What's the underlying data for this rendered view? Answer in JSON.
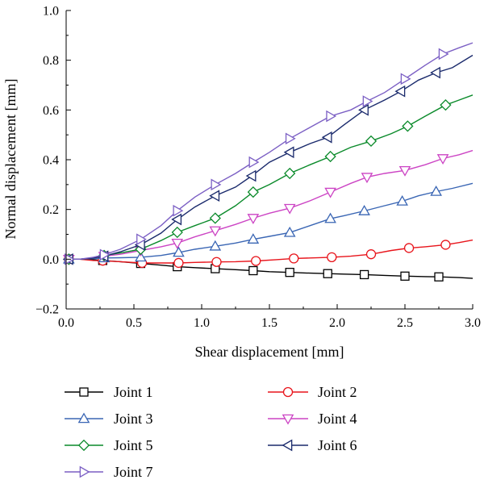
{
  "chart_data": {
    "type": "line",
    "xlabel": "Shear displacement [mm]",
    "ylabel": "Normal displacement [mm]",
    "xlim": [
      0,
      3.0
    ],
    "ylim": [
      -0.2,
      1.0
    ],
    "x_ticks": [
      "0.0",
      "0.5",
      "1.0",
      "1.5",
      "2.0",
      "2.5",
      "3.0"
    ],
    "y_ticks": [
      "−0.2",
      "0.0",
      "0.2",
      "0.4",
      "0.6",
      "0.8",
      "1.0"
    ],
    "x_tick_values": [
      0,
      0.5,
      1.0,
      1.5,
      2.0,
      2.5,
      3.0
    ],
    "y_tick_values": [
      -0.2,
      0,
      0.2,
      0.4,
      0.6,
      0.8,
      1.0
    ],
    "grid": false,
    "legend_position": "bottom",
    "series": [
      {
        "name": "Joint 1",
        "color": "#000000",
        "marker": "square",
        "points": [
          [
            0,
            0
          ],
          [
            0.02,
            0
          ],
          [
            0.05,
            0
          ],
          [
            0.1,
            0
          ],
          [
            0.2,
            -0.002
          ],
          [
            0.27,
            -0.005
          ],
          [
            0.4,
            -0.01
          ],
          [
            0.55,
            -0.017
          ],
          [
            0.7,
            -0.024
          ],
          [
            0.82,
            -0.03
          ],
          [
            0.95,
            -0.034
          ],
          [
            1.1,
            -0.038
          ],
          [
            1.25,
            -0.042
          ],
          [
            1.38,
            -0.046
          ],
          [
            1.5,
            -0.05
          ],
          [
            1.65,
            -0.053
          ],
          [
            1.8,
            -0.056
          ],
          [
            1.93,
            -0.058
          ],
          [
            2.05,
            -0.06
          ],
          [
            2.2,
            -0.062
          ],
          [
            2.35,
            -0.065
          ],
          [
            2.5,
            -0.068
          ],
          [
            2.65,
            -0.07
          ],
          [
            2.75,
            -0.071
          ],
          [
            2.9,
            -0.074
          ],
          [
            3.0,
            -0.077
          ]
        ],
        "markers": [
          [
            0.02,
            0
          ],
          [
            0.27,
            -0.005
          ],
          [
            0.55,
            -0.017
          ],
          [
            0.82,
            -0.03
          ],
          [
            1.1,
            -0.038
          ],
          [
            1.38,
            -0.046
          ],
          [
            1.65,
            -0.053
          ],
          [
            1.93,
            -0.058
          ],
          [
            2.2,
            -0.062
          ],
          [
            2.5,
            -0.068
          ],
          [
            2.75,
            -0.071
          ]
        ]
      },
      {
        "name": "Joint 2",
        "color": "#e8141b",
        "marker": "circle",
        "points": [
          [
            0,
            0
          ],
          [
            0.02,
            0
          ],
          [
            0.1,
            0
          ],
          [
            0.2,
            -0.005
          ],
          [
            0.27,
            -0.006
          ],
          [
            0.4,
            -0.01
          ],
          [
            0.56,
            -0.015
          ],
          [
            0.7,
            -0.015
          ],
          [
            0.83,
            -0.015
          ],
          [
            0.95,
            -0.013
          ],
          [
            1.11,
            -0.011
          ],
          [
            1.25,
            -0.01
          ],
          [
            1.4,
            -0.007
          ],
          [
            1.55,
            -0.002
          ],
          [
            1.68,
            0.003
          ],
          [
            1.8,
            0.005
          ],
          [
            1.96,
            0.008
          ],
          [
            2.1,
            0.012
          ],
          [
            2.25,
            0.02
          ],
          [
            2.4,
            0.035
          ],
          [
            2.53,
            0.045
          ],
          [
            2.65,
            0.05
          ],
          [
            2.8,
            0.058
          ],
          [
            2.9,
            0.067
          ],
          [
            3.0,
            0.077
          ]
        ],
        "markers": [
          [
            0.02,
            0
          ],
          [
            0.27,
            -0.006
          ],
          [
            0.56,
            -0.015
          ],
          [
            0.83,
            -0.015
          ],
          [
            1.11,
            -0.011
          ],
          [
            1.4,
            -0.007
          ],
          [
            1.68,
            0.003
          ],
          [
            1.96,
            0.008
          ],
          [
            2.25,
            0.02
          ],
          [
            2.53,
            0.045
          ],
          [
            2.8,
            0.058
          ]
        ]
      },
      {
        "name": "Joint 3",
        "color": "#3a66b4",
        "marker": "triangle-up",
        "points": [
          [
            0,
            0
          ],
          [
            0.02,
            0
          ],
          [
            0.1,
            0
          ],
          [
            0.2,
            0.002
          ],
          [
            0.28,
            0.005
          ],
          [
            0.4,
            0.006
          ],
          [
            0.55,
            0.008
          ],
          [
            0.7,
            0.015
          ],
          [
            0.83,
            0.027
          ],
          [
            0.95,
            0.04
          ],
          [
            1.1,
            0.052
          ],
          [
            1.25,
            0.065
          ],
          [
            1.38,
            0.08
          ],
          [
            1.5,
            0.092
          ],
          [
            1.65,
            0.107
          ],
          [
            1.8,
            0.135
          ],
          [
            1.95,
            0.163
          ],
          [
            2.05,
            0.175
          ],
          [
            2.2,
            0.194
          ],
          [
            2.35,
            0.215
          ],
          [
            2.48,
            0.233
          ],
          [
            2.6,
            0.255
          ],
          [
            2.73,
            0.272
          ],
          [
            2.85,
            0.285
          ],
          [
            3.0,
            0.305
          ]
        ],
        "markers": [
          [
            0.02,
            0
          ],
          [
            0.28,
            0.005
          ],
          [
            0.55,
            0.008
          ],
          [
            0.83,
            0.027
          ],
          [
            1.1,
            0.052
          ],
          [
            1.38,
            0.08
          ],
          [
            1.65,
            0.107
          ],
          [
            1.95,
            0.163
          ],
          [
            2.2,
            0.194
          ],
          [
            2.48,
            0.233
          ],
          [
            2.73,
            0.272
          ]
        ]
      },
      {
        "name": "Joint 4",
        "color": "#cc44c4",
        "marker": "triangle-down",
        "points": [
          [
            0,
            0
          ],
          [
            0.02,
            0
          ],
          [
            0.1,
            0
          ],
          [
            0.2,
            0.005
          ],
          [
            0.28,
            0.012
          ],
          [
            0.4,
            0.02
          ],
          [
            0.55,
            0.035
          ],
          [
            0.7,
            0.05
          ],
          [
            0.82,
            0.065
          ],
          [
            0.95,
            0.09
          ],
          [
            1.1,
            0.115
          ],
          [
            1.25,
            0.14
          ],
          [
            1.38,
            0.165
          ],
          [
            1.5,
            0.185
          ],
          [
            1.65,
            0.205
          ],
          [
            1.8,
            0.235
          ],
          [
            1.95,
            0.27
          ],
          [
            2.1,
            0.305
          ],
          [
            2.22,
            0.33
          ],
          [
            2.35,
            0.345
          ],
          [
            2.5,
            0.357
          ],
          [
            2.65,
            0.38
          ],
          [
            2.78,
            0.405
          ],
          [
            2.9,
            0.42
          ],
          [
            3.0,
            0.437
          ]
        ],
        "markers": [
          [
            0.02,
            0
          ],
          [
            0.28,
            0.012
          ],
          [
            0.55,
            0.035
          ],
          [
            0.82,
            0.065
          ],
          [
            1.1,
            0.115
          ],
          [
            1.38,
            0.165
          ],
          [
            1.65,
            0.205
          ],
          [
            1.95,
            0.27
          ],
          [
            2.22,
            0.33
          ],
          [
            2.5,
            0.357
          ],
          [
            2.78,
            0.405
          ]
        ]
      },
      {
        "name": "Joint 5",
        "color": "#0a8a2a",
        "marker": "diamond",
        "points": [
          [
            0,
            0
          ],
          [
            0.02,
            0
          ],
          [
            0.1,
            0
          ],
          [
            0.2,
            0.005
          ],
          [
            0.28,
            0.015
          ],
          [
            0.4,
            0.025
          ],
          [
            0.55,
            0.04
          ],
          [
            0.7,
            0.075
          ],
          [
            0.82,
            0.108
          ],
          [
            0.95,
            0.135
          ],
          [
            1.1,
            0.165
          ],
          [
            1.25,
            0.215
          ],
          [
            1.38,
            0.27
          ],
          [
            1.5,
            0.3
          ],
          [
            1.65,
            0.345
          ],
          [
            1.8,
            0.38
          ],
          [
            1.95,
            0.413
          ],
          [
            2.1,
            0.45
          ],
          [
            2.25,
            0.475
          ],
          [
            2.4,
            0.505
          ],
          [
            2.52,
            0.535
          ],
          [
            2.65,
            0.575
          ],
          [
            2.8,
            0.62
          ],
          [
            2.9,
            0.64
          ],
          [
            3.0,
            0.66
          ]
        ],
        "markers": [
          [
            0.02,
            0
          ],
          [
            0.28,
            0.015
          ],
          [
            0.55,
            0.04
          ],
          [
            0.82,
            0.108
          ],
          [
            1.1,
            0.165
          ],
          [
            1.38,
            0.27
          ],
          [
            1.65,
            0.345
          ],
          [
            1.95,
            0.413
          ],
          [
            2.25,
            0.475
          ],
          [
            2.52,
            0.535
          ],
          [
            2.8,
            0.62
          ]
        ]
      },
      {
        "name": "Joint 6",
        "color": "#1a2a6c",
        "marker": "triangle-left",
        "points": [
          [
            0,
            0
          ],
          [
            0.02,
            0
          ],
          [
            0.1,
            0
          ],
          [
            0.2,
            0.005
          ],
          [
            0.28,
            0.012
          ],
          [
            0.4,
            0.03
          ],
          [
            0.55,
            0.058
          ],
          [
            0.7,
            0.105
          ],
          [
            0.82,
            0.16
          ],
          [
            0.95,
            0.21
          ],
          [
            1.1,
            0.255
          ],
          [
            1.25,
            0.29
          ],
          [
            1.37,
            0.335
          ],
          [
            1.5,
            0.39
          ],
          [
            1.65,
            0.43
          ],
          [
            1.8,
            0.465
          ],
          [
            1.93,
            0.49
          ],
          [
            2.05,
            0.54
          ],
          [
            2.2,
            0.6
          ],
          [
            2.35,
            0.64
          ],
          [
            2.47,
            0.675
          ],
          [
            2.6,
            0.72
          ],
          [
            2.73,
            0.75
          ],
          [
            2.85,
            0.77
          ],
          [
            3.0,
            0.82
          ]
        ],
        "markers": [
          [
            0.02,
            0
          ],
          [
            0.28,
            0.012
          ],
          [
            0.55,
            0.058
          ],
          [
            0.82,
            0.16
          ],
          [
            1.1,
            0.255
          ],
          [
            1.37,
            0.335
          ],
          [
            1.65,
            0.43
          ],
          [
            1.93,
            0.49
          ],
          [
            2.2,
            0.6
          ],
          [
            2.47,
            0.675
          ],
          [
            2.73,
            0.75
          ]
        ]
      },
      {
        "name": "Joint 7",
        "color": "#7b5fc4",
        "marker": "triangle-right",
        "points": [
          [
            0,
            0
          ],
          [
            0.02,
            0
          ],
          [
            0.1,
            0
          ],
          [
            0.2,
            0.008
          ],
          [
            0.28,
            0.018
          ],
          [
            0.4,
            0.04
          ],
          [
            0.55,
            0.08
          ],
          [
            0.7,
            0.135
          ],
          [
            0.82,
            0.195
          ],
          [
            0.95,
            0.25
          ],
          [
            1.1,
            0.3
          ],
          [
            1.25,
            0.345
          ],
          [
            1.38,
            0.39
          ],
          [
            1.5,
            0.43
          ],
          [
            1.65,
            0.485
          ],
          [
            1.8,
            0.53
          ],
          [
            1.95,
            0.575
          ],
          [
            2.1,
            0.6
          ],
          [
            2.22,
            0.635
          ],
          [
            2.35,
            0.67
          ],
          [
            2.5,
            0.725
          ],
          [
            2.65,
            0.78
          ],
          [
            2.78,
            0.825
          ],
          [
            2.9,
            0.85
          ],
          [
            3.0,
            0.87
          ]
        ],
        "markers": [
          [
            0.02,
            0
          ],
          [
            0.28,
            0.018
          ],
          [
            0.55,
            0.08
          ],
          [
            0.82,
            0.195
          ],
          [
            1.1,
            0.3
          ],
          [
            1.38,
            0.39
          ],
          [
            1.65,
            0.485
          ],
          [
            1.95,
            0.575
          ],
          [
            2.22,
            0.635
          ],
          [
            2.5,
            0.725
          ],
          [
            2.78,
            0.825
          ]
        ]
      }
    ]
  }
}
